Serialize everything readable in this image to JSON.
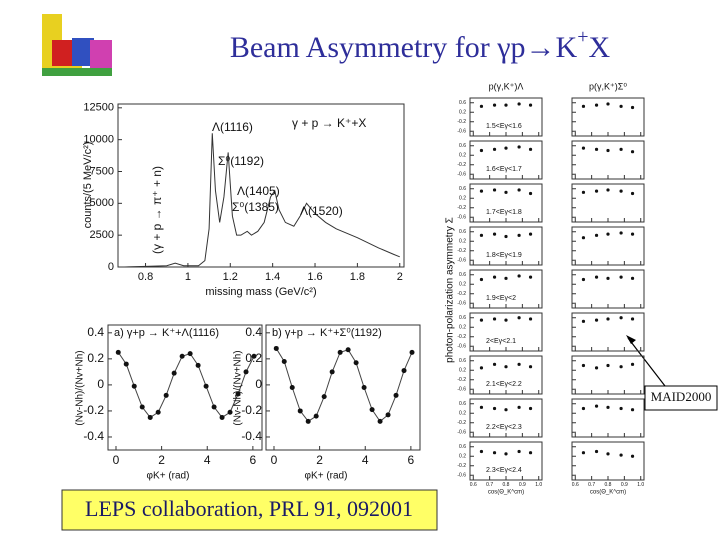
{
  "title": {
    "main": "Beam Asymmetry for γp→K",
    "sup": "+",
    "end": "X"
  },
  "note_box": "MAID2000",
  "citation": "LEPS collaboration, PRL 91, 092001",
  "chart_data": [
    {
      "type": "line",
      "xlabel": "missing mass (GeV/c²)",
      "ylabel": "counts/(5 MeV/c²)",
      "annotations": [
        "Λ(1116)",
        "Σ⁰(1192)",
        "Λ(1405)",
        "Σ⁰(1385)",
        "Λ(1520)",
        "γ + p → K⁺+X",
        "(γ + p → π⁺ + n)"
      ],
      "x": [
        0.7,
        0.8,
        0.9,
        0.94,
        0.98,
        1.05,
        1.08,
        1.1,
        1.115,
        1.13,
        1.15,
        1.17,
        1.19,
        1.21,
        1.23,
        1.25,
        1.28,
        1.3,
        1.33,
        1.36,
        1.39,
        1.41,
        1.43,
        1.46,
        1.5,
        1.53,
        1.56,
        1.6,
        1.65,
        1.7,
        1.8,
        1.9,
        1.97,
        2.0
      ],
      "values": [
        0,
        50,
        100,
        300,
        100,
        100,
        500,
        3000,
        10500,
        6000,
        3500,
        5500,
        9000,
        4000,
        2500,
        2500,
        2800,
        2500,
        2800,
        3500,
        5500,
        6000,
        4500,
        3500,
        3200,
        4000,
        5000,
        4200,
        3500,
        3000,
        2300,
        1500,
        1000,
        800
      ],
      "color": "#333333",
      "xlim": [
        0.67,
        2.02
      ],
      "ylim": [
        0,
        12800
      ],
      "xticks": [
        0.8,
        1,
        1.2,
        1.4,
        1.6,
        1.8,
        2
      ],
      "yticks": [
        0,
        2500,
        5000,
        7500,
        10000,
        12500
      ]
    },
    {
      "type": "scatter",
      "title": "a) γ+p → K⁺+Λ(1116)",
      "xlabel": "φK+ (rad)",
      "ylabel": "(Nv-Nh)/(Nv+Nh)",
      "x": [
        0.1,
        0.45,
        0.8,
        1.15,
        1.5,
        1.85,
        2.2,
        2.55,
        2.9,
        3.25,
        3.6,
        3.95,
        4.3,
        4.65,
        5.0,
        5.35,
        5.7,
        6.05
      ],
      "values": [
        0.25,
        0.16,
        -0.01,
        -0.17,
        -0.25,
        -0.21,
        -0.08,
        0.09,
        0.22,
        0.24,
        0.15,
        -0.01,
        -0.17,
        -0.25,
        -0.21,
        -0.07,
        0.1,
        0.22
      ],
      "color": "#111111",
      "xlim": [
        -0.35,
        6.4
      ],
      "ylim": [
        -0.5,
        0.46
      ],
      "xticks": [
        0,
        2,
        4,
        6
      ],
      "yticks": [
        -0.4,
        -0.2,
        0,
        0.2,
        0.4
      ]
    },
    {
      "type": "scatter",
      "title": "b) γ+p → K⁺+Σ⁰(1192)",
      "xlabel": "φK+ (rad)",
      "ylabel": "(Nv-Nh)/(Nv+Nh)",
      "x": [
        0.1,
        0.45,
        0.8,
        1.15,
        1.5,
        1.85,
        2.2,
        2.55,
        2.9,
        3.25,
        3.6,
        3.95,
        4.3,
        4.65,
        5.0,
        5.35,
        5.7,
        6.05
      ],
      "values": [
        0.28,
        0.18,
        -0.02,
        -0.2,
        -0.28,
        -0.24,
        -0.09,
        0.1,
        0.25,
        0.27,
        0.17,
        -0.02,
        -0.19,
        -0.28,
        -0.23,
        -0.08,
        0.11,
        0.25
      ],
      "color": "#111111",
      "xlim": [
        -0.35,
        6.4
      ],
      "ylim": [
        -0.5,
        0.46
      ],
      "xticks": [
        0,
        2,
        4,
        6
      ],
      "yticks": [
        -0.4,
        -0.2,
        0,
        0.2,
        0.4
      ]
    },
    {
      "type": "panel-grid",
      "ylabel": "photon-polarization asymmetry Σ",
      "columns": [
        "p(γ,K⁺)Λ",
        "p(γ,K⁺)Σ⁰"
      ],
      "xlabels": [
        "cos(Θ_K^cm)",
        "cos(Θ_K^cm)"
      ],
      "x": [
        0.65,
        0.73,
        0.8,
        0.88,
        0.95
      ],
      "xlim": [
        0.58,
        1.02
      ],
      "ylim": [
        -0.8,
        0.8
      ],
      "xticks": [
        0.6,
        0.7,
        0.8,
        0.9,
        {
          "value": 1,
          "label": "1.0"
        }
      ],
      "yticks": [
        0.6,
        0.2,
        -0.2,
        -0.6
      ],
      "color": "#111111",
      "rows": [
        {
          "label": "1.5<Eγ<1.6",
          "series": [
            [
              0.45,
              0.5,
              0.5,
              0.55,
              0.5
            ],
            [
              0.45,
              0.5,
              0.55,
              0.45,
              0.4
            ]
          ]
        },
        {
          "label": "1.6<Eγ<1.7",
          "series": [
            [
              0.4,
              0.45,
              0.5,
              0.55,
              0.45
            ],
            [
              0.5,
              0.45,
              0.4,
              0.45,
              0.35
            ]
          ]
        },
        {
          "label": "1.7<Eγ<1.8",
          "series": [
            [
              0.5,
              0.55,
              0.45,
              0.55,
              0.4
            ],
            [
              0.45,
              0.5,
              0.55,
              0.5,
              0.4
            ]
          ]
        },
        {
          "label": "1.8<Eγ<1.9",
          "series": [
            [
              0.45,
              0.5,
              0.4,
              0.45,
              0.5
            ],
            [
              0.35,
              0.45,
              0.5,
              0.55,
              0.5
            ]
          ]
        },
        {
          "label": "1.9<Eγ<2",
          "series": [
            [
              0.4,
              0.5,
              0.45,
              0.55,
              0.5
            ],
            [
              0.4,
              0.5,
              0.45,
              0.5,
              0.45
            ]
          ]
        },
        {
          "label": "2<Eγ<2.1",
          "series": [
            [
              0.5,
              0.55,
              0.5,
              0.6,
              0.55
            ],
            [
              0.45,
              0.5,
              0.55,
              0.6,
              0.55
            ]
          ]
        },
        {
          "label": "2.1<Eγ<2.2",
          "series": [
            [
              0.3,
              0.45,
              0.35,
              0.45,
              0.35
            ],
            [
              0.4,
              0.3,
              0.4,
              0.35,
              0.45
            ]
          ]
        },
        {
          "label": "2.2<Eγ<2.3",
          "series": [
            [
              0.45,
              0.4,
              0.35,
              0.45,
              0.4
            ],
            [
              0.4,
              0.5,
              0.45,
              0.4,
              0.35
            ]
          ]
        },
        {
          "label": "2.3<Eγ<2.4",
          "series": [
            [
              0.4,
              0.35,
              0.3,
              0.4,
              0.35
            ],
            [
              0.35,
              0.4,
              0.3,
              0.25,
              0.2
            ]
          ]
        }
      ]
    }
  ]
}
